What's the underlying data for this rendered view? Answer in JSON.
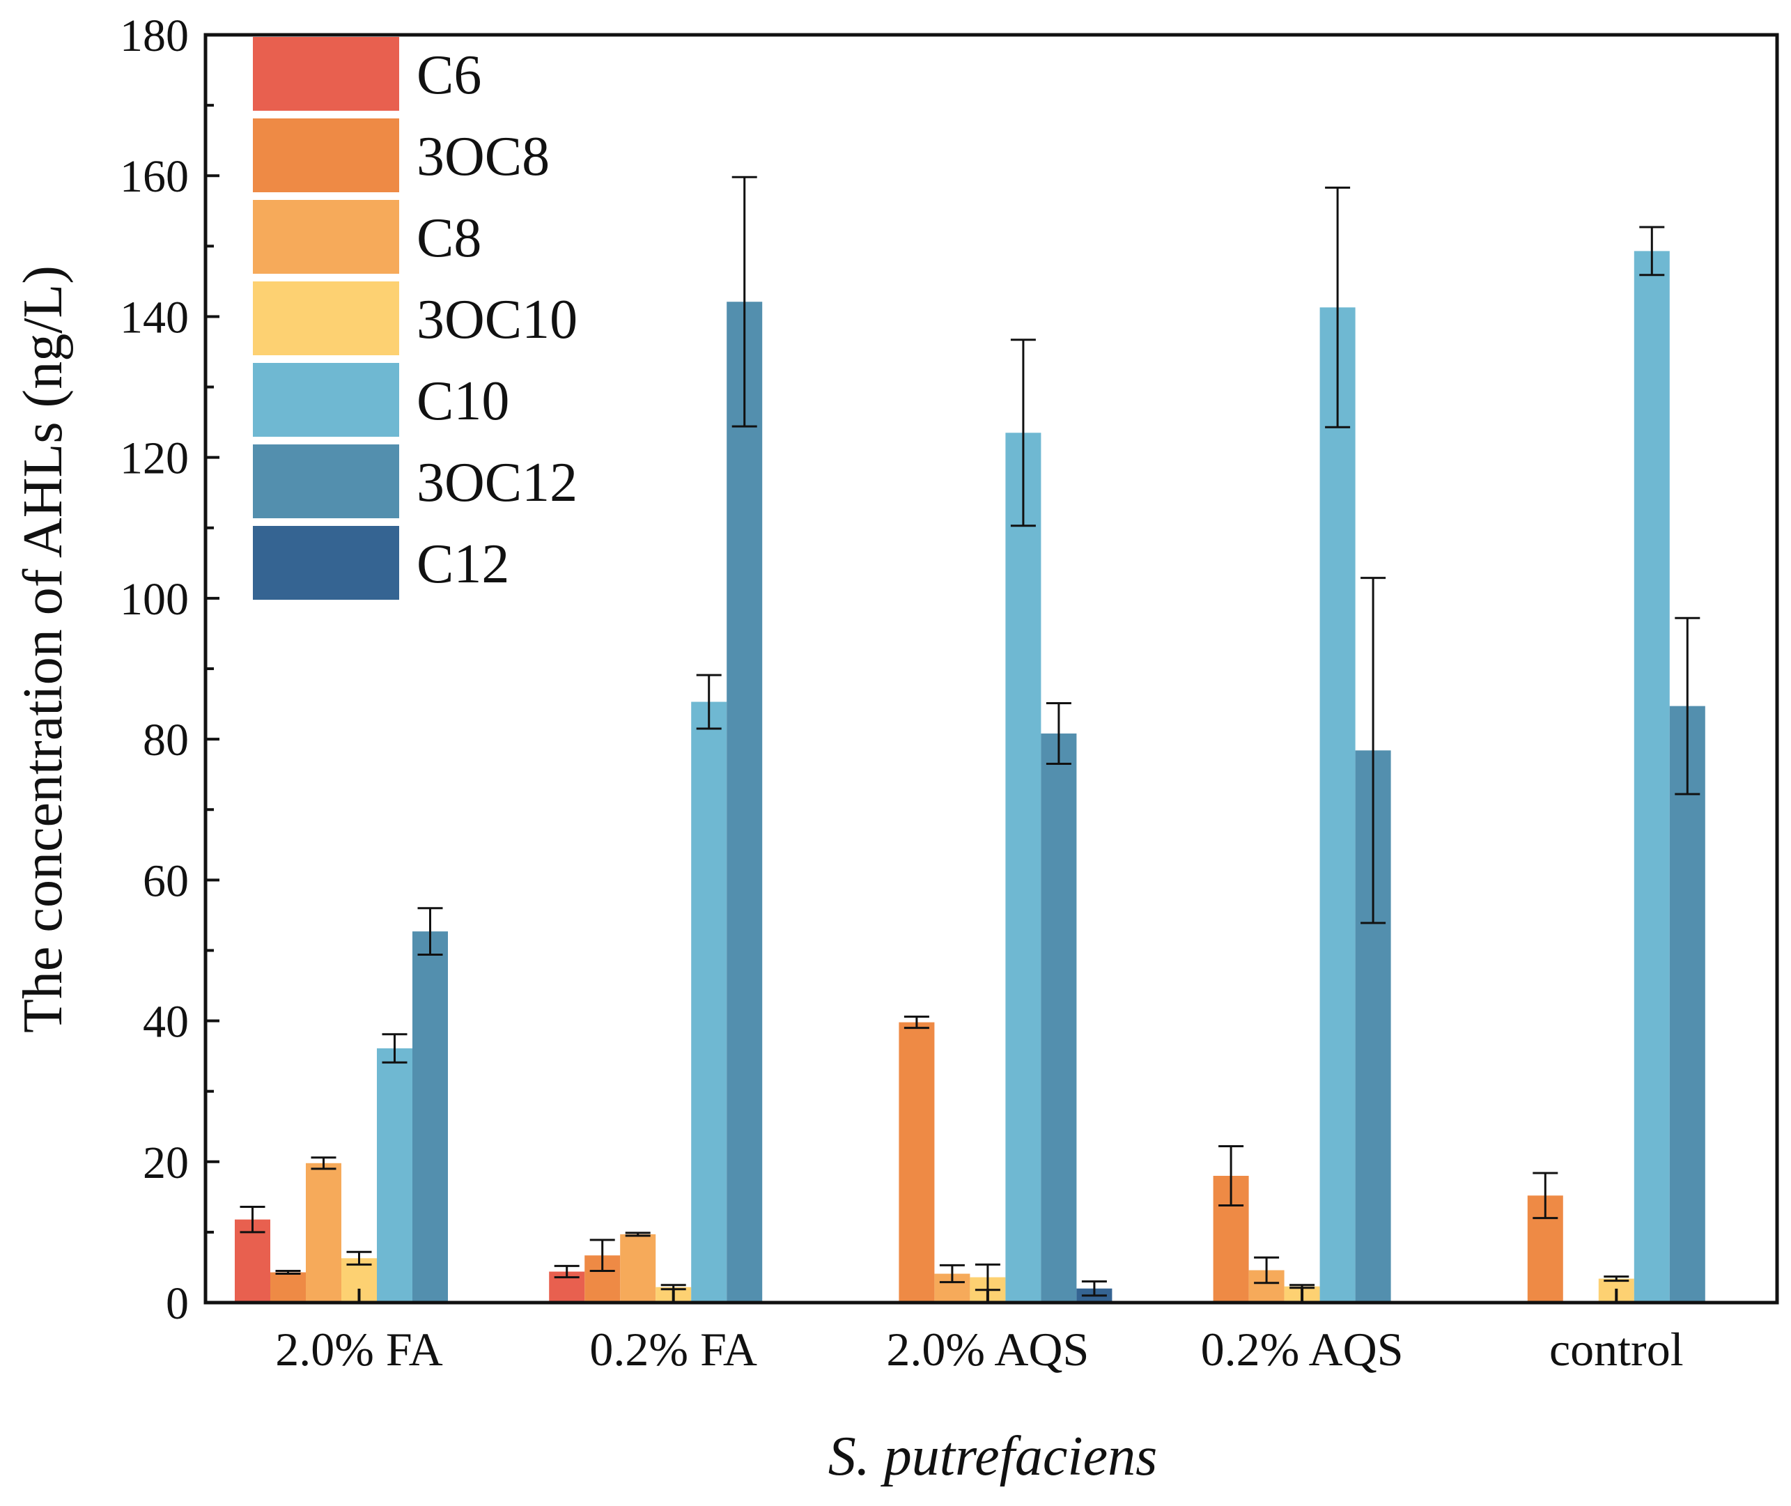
{
  "chart_data": {
    "type": "bar",
    "title": "",
    "xlabel": "S. putrefaciens",
    "ylabel": "The concentration of AHLs (ng/L)",
    "ylim": [
      0,
      180
    ],
    "yticks": [
      0,
      20,
      40,
      60,
      80,
      100,
      120,
      140,
      160,
      180
    ],
    "legend_position": "top-left",
    "categories": [
      "2.0% FA",
      "0.2% FA",
      "2.0% AQS",
      "0.2% AQS",
      "control"
    ],
    "series": [
      {
        "name": "C6",
        "color": "#E8604F",
        "values": [
          11.8,
          4.4,
          0,
          0,
          0
        ],
        "errors": [
          1.8,
          0.8,
          0,
          0,
          0
        ]
      },
      {
        "name": "3OC8",
        "color": "#EE8A45",
        "values": [
          4.3,
          6.7,
          39.8,
          18.0,
          15.2
        ],
        "errors": [
          0.2,
          2.2,
          0.8,
          4.2,
          3.2
        ]
      },
      {
        "name": "C8",
        "color": "#F6AA5A",
        "values": [
          19.8,
          9.7,
          4.1,
          4.6,
          0
        ],
        "errors": [
          0.8,
          0.2,
          1.2,
          1.8,
          0
        ]
      },
      {
        "name": "3OC10",
        "color": "#FDD172",
        "values": [
          6.3,
          2.2,
          3.6,
          2.3,
          3.4
        ],
        "errors": [
          0.9,
          0.3,
          1.8,
          0.2,
          0.3
        ]
      },
      {
        "name": "C10",
        "color": "#6FB8D2",
        "values": [
          36.1,
          85.3,
          123.5,
          141.3,
          149.3
        ],
        "errors": [
          2.0,
          3.8,
          13.2,
          17.0,
          3.4
        ]
      },
      {
        "name": "3OC12",
        "color": "#538FAE",
        "values": [
          52.7,
          142.1,
          80.8,
          78.4,
          84.7
        ],
        "errors": [
          3.3,
          17.7,
          4.3,
          24.5,
          12.5
        ]
      },
      {
        "name": "C12",
        "color": "#356492",
        "values": [
          0,
          0,
          2.0,
          0,
          0
        ],
        "errors": [
          0,
          0,
          1.0,
          0,
          0
        ]
      }
    ]
  }
}
